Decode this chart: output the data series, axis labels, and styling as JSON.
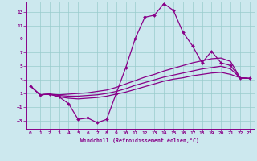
{
  "xlabel": "Windchill (Refroidissement éolien,°C)",
  "bg_color": "#cce8ee",
  "line_color": "#880088",
  "grid_color": "#99cccc",
  "xlim": [
    -0.5,
    23.5
  ],
  "ylim": [
    -4.2,
    14.5
  ],
  "xticks": [
    0,
    1,
    2,
    3,
    4,
    5,
    6,
    7,
    8,
    9,
    10,
    11,
    12,
    13,
    14,
    15,
    16,
    17,
    18,
    19,
    20,
    21,
    22,
    23
  ],
  "yticks": [
    -3,
    -1,
    1,
    3,
    5,
    7,
    9,
    11,
    13
  ],
  "line1_x": [
    0,
    1,
    2,
    3,
    4,
    5,
    6,
    7,
    8,
    9,
    10,
    11,
    12,
    13,
    14,
    15,
    16,
    17,
    18,
    19,
    20,
    21,
    22,
    23
  ],
  "line1_y": [
    2.1,
    0.8,
    0.9,
    0.5,
    -0.5,
    -2.8,
    -2.6,
    -3.3,
    -2.8,
    1.0,
    4.8,
    9.1,
    12.2,
    12.5,
    14.2,
    13.2,
    10.0,
    8.0,
    5.5,
    7.2,
    5.5,
    5.1,
    3.3,
    3.2
  ],
  "line2_x": [
    0,
    1,
    2,
    3,
    4,
    5,
    6,
    7,
    8,
    9,
    10,
    11,
    12,
    13,
    14,
    15,
    16,
    17,
    18,
    19,
    20,
    21,
    22,
    23
  ],
  "line2_y": [
    2.1,
    0.8,
    0.9,
    0.8,
    0.9,
    1.0,
    1.1,
    1.3,
    1.5,
    1.9,
    2.4,
    2.9,
    3.4,
    3.8,
    4.3,
    4.7,
    5.1,
    5.5,
    5.8,
    6.1,
    6.2,
    5.7,
    3.3,
    3.2
  ],
  "line3_x": [
    0,
    1,
    2,
    3,
    4,
    5,
    6,
    7,
    8,
    9,
    10,
    11,
    12,
    13,
    14,
    15,
    16,
    17,
    18,
    19,
    20,
    21,
    22,
    23
  ],
  "line3_y": [
    2.1,
    0.8,
    0.9,
    0.7,
    0.6,
    0.6,
    0.7,
    0.8,
    1.0,
    1.3,
    1.7,
    2.2,
    2.6,
    3.0,
    3.4,
    3.7,
    4.0,
    4.3,
    4.6,
    4.8,
    5.0,
    4.6,
    3.3,
    3.2
  ],
  "line4_x": [
    0,
    1,
    2,
    3,
    4,
    5,
    6,
    7,
    8,
    9,
    10,
    11,
    12,
    13,
    14,
    15,
    16,
    17,
    18,
    19,
    20,
    21,
    22,
    23
  ],
  "line4_y": [
    2.1,
    0.8,
    0.9,
    0.5,
    0.3,
    0.2,
    0.3,
    0.4,
    0.6,
    0.9,
    1.2,
    1.6,
    2.0,
    2.4,
    2.8,
    3.1,
    3.3,
    3.6,
    3.8,
    4.0,
    4.1,
    3.8,
    3.3,
    3.2
  ]
}
